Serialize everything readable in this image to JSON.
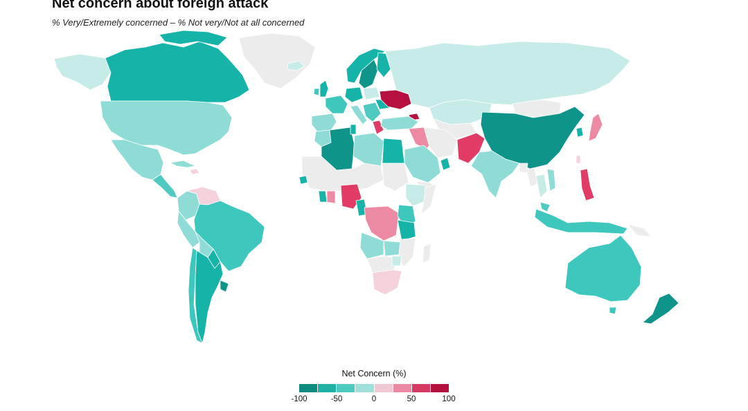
{
  "title": "Net concern about foreign attack",
  "subtitle": "% Very/Extremely concerned – % Not very/Not at all concerned",
  "legend": {
    "title": "Net Concern (%)",
    "ticks": [
      "-100",
      "-50",
      "0",
      "50",
      "100"
    ],
    "colors": [
      "#0e8c80",
      "#1fb0a6",
      "#4fcac1",
      "#9fe0db",
      "#f0c8d4",
      "#e98aa2",
      "#d63a63",
      "#b3103d"
    ]
  },
  "colors": {
    "no_data": "#ececec",
    "teal_dark": "#0f948a",
    "teal": "#16b3a8",
    "teal_mid": "#3ec7bd",
    "teal_light": "#8edcd5",
    "teal_pale": "#c7ece8",
    "pink_pale": "#f3d2dc",
    "pink": "#ec8aa4",
    "red": "#e03c66",
    "crimson": "#b5103f"
  }
}
